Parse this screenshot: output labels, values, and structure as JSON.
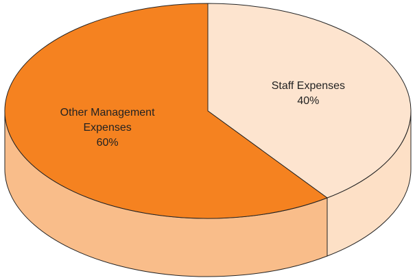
{
  "chart_data": {
    "type": "pie3d",
    "categories": [
      "Staff Expenses",
      "Other Management Expenses"
    ],
    "values": [
      40,
      60
    ],
    "value_labels": [
      "40%",
      "60%"
    ],
    "colors": [
      "#fde4cf",
      "#f58220"
    ],
    "side_colors": [
      "#fde0c6",
      "#f9bd8a"
    ]
  }
}
